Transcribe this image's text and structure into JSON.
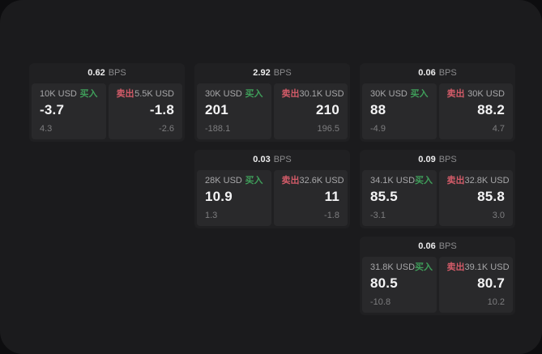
{
  "labels": {
    "bps_unit": "BPS",
    "buy": "买入",
    "sell": "卖出"
  },
  "colors": {
    "buy_green": "#3f9e5a",
    "sell_red": "#d25b68",
    "page_background": "#1b1b1d",
    "card_background": "#202022",
    "panel_background": "#29292b"
  },
  "cards": [
    {
      "bps": "0.62",
      "buy": {
        "notional": "10K USD",
        "price": "-3.7",
        "delta": "4.3"
      },
      "sell": {
        "notional": "5.5K USD",
        "price": "-1.8",
        "delta": "-2.6"
      }
    },
    {
      "bps": "2.92",
      "buy": {
        "notional": "30K USD",
        "price": "201",
        "delta": "-188.1"
      },
      "sell": {
        "notional": "30.1K USD",
        "price": "210",
        "delta": "196.5"
      }
    },
    {
      "bps": "0.06",
      "buy": {
        "notional": "30K USD",
        "price": "88",
        "delta": "-4.9"
      },
      "sell": {
        "notional": "30K USD",
        "price": "88.2",
        "delta": "4.7"
      }
    },
    {
      "bps": "0.03",
      "buy": {
        "notional": "28K USD",
        "price": "10.9",
        "delta": "1.3"
      },
      "sell": {
        "notional": "32.6K USD",
        "price": "11",
        "delta": "-1.8"
      }
    },
    {
      "bps": "0.09",
      "buy": {
        "notional": "34.1K USD",
        "price": "85.5",
        "delta": "-3.1"
      },
      "sell": {
        "notional": "32.8K USD",
        "price": "85.8",
        "delta": "3.0"
      }
    },
    {
      "bps": "0.06",
      "buy": {
        "notional": "31.8K USD",
        "price": "80.5",
        "delta": "-10.8"
      },
      "sell": {
        "notional": "39.1K USD",
        "price": "80.7",
        "delta": "10.2"
      }
    }
  ]
}
